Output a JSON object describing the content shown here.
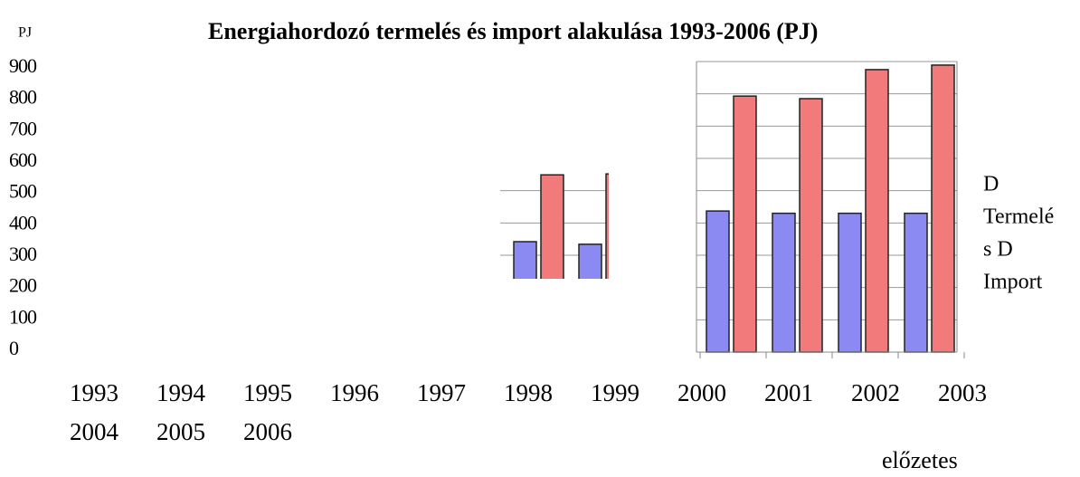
{
  "chart_data": {
    "type": "bar",
    "title": "Energiahordozó termelés és import alakulása 1993-2006 (PJ)",
    "y_unit": "PJ",
    "ylim": [
      0,
      900
    ],
    "yticks": [
      900,
      800,
      700,
      600,
      500,
      400,
      300,
      200,
      100,
      0
    ],
    "categories": [
      "1993",
      "1994",
      "1995",
      "1996",
      "1997",
      "1998",
      "1999",
      "2000",
      "2001",
      "2002",
      "2003",
      "2004",
      "2005",
      "2006"
    ],
    "series": [
      {
        "color": "#8a8af2",
        "values": [
          null,
          null,
          null,
          null,
          null,
          342,
          334,
          437,
          430,
          430,
          430,
          null,
          null,
          null
        ]
      },
      {
        "color": "#f27a7a",
        "values": [
          null,
          null,
          null,
          null,
          null,
          549,
          552,
          793,
          785,
          875,
          889,
          null,
          null,
          null
        ]
      }
    ],
    "legend_lines": [
      "D",
      "Termelé",
      "s D",
      "Import"
    ],
    "note": "előzetes",
    "grid": true
  }
}
